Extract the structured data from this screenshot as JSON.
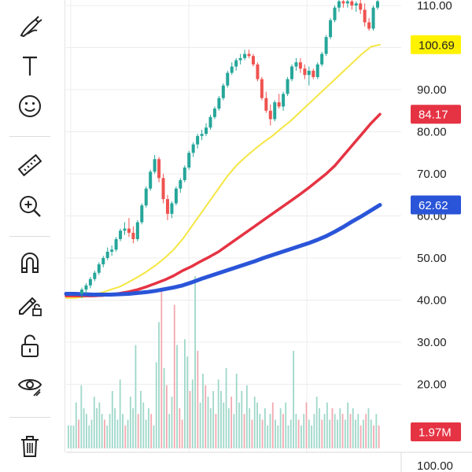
{
  "toolbar": {
    "tools": [
      {
        "name": "brush-tool",
        "icon": "brush-icon"
      },
      {
        "name": "text-tool",
        "icon": "text-icon"
      },
      {
        "name": "emoji-tool",
        "icon": "smiley-icon"
      },
      {
        "name": "measure-tool",
        "icon": "ruler-icon"
      },
      {
        "name": "zoom-in-tool",
        "icon": "zoom-in-icon"
      },
      {
        "name": "magnet-tool",
        "icon": "magnet-icon"
      },
      {
        "name": "lock-drawings-tool",
        "icon": "pencil-lock-icon"
      },
      {
        "name": "lock-tool",
        "icon": "unlock-icon"
      },
      {
        "name": "hide-drawings-tool",
        "icon": "eye-icon"
      },
      {
        "name": "delete-tool",
        "icon": "trash-icon"
      }
    ]
  },
  "chart_data": {
    "type": "candlestick",
    "price_axis": {
      "ticks": [
        "110.00",
        "100.00",
        "90.00",
        "80.00",
        "70.00",
        "60.00",
        "50.00",
        "40.00",
        "30.00",
        "20.00"
      ],
      "bottom_label": "100.00",
      "range": [
        18,
        111.5
      ]
    },
    "grid": true,
    "moving_averages": [
      {
        "color": "#f5e642",
        "last_value": "100.69",
        "tag_bg": "#fff200",
        "tag_fg": "#222222",
        "values": [
          40.5,
          40.5,
          40.8,
          41.3,
          41.8,
          42.5,
          43.2,
          44.3,
          45.5,
          46.8,
          48.3,
          50.0,
          52.0,
          54.5,
          57.5,
          60.5,
          63.5,
          66.5,
          69.5,
          72.0,
          74.0,
          75.8,
          77.5,
          79.0,
          80.8,
          82.5,
          84.5,
          86.5,
          88.5,
          90.5,
          92.5,
          94.5,
          96.5,
          98.5,
          100.2,
          100.69
        ]
      },
      {
        "color": "#e53343",
        "last_value": "84.17",
        "tag_bg": "#e53343",
        "tag_fg": "#ffffff",
        "values": [
          41.0,
          41.0,
          41.0,
          41.0,
          41.1,
          41.3,
          41.6,
          42.0,
          42.5,
          43.2,
          44.0,
          44.8,
          45.8,
          47.0,
          48.0,
          49.2,
          50.3,
          51.5,
          53.0,
          54.5,
          56.0,
          57.5,
          59.0,
          60.5,
          62.0,
          63.5,
          65.0,
          66.6,
          68.3,
          70.0,
          72.0,
          74.5,
          77.0,
          79.5,
          82.0,
          84.17
        ]
      },
      {
        "color": "#2a55d8",
        "last_value": "62.62",
        "tag_bg": "#2a55d8",
        "tag_fg": "#ffffff",
        "values": [
          41.5,
          41.5,
          41.4,
          41.3,
          41.3,
          41.3,
          41.4,
          41.5,
          41.7,
          41.9,
          42.2,
          42.6,
          43.0,
          43.5,
          44.2,
          45.0,
          45.7,
          46.4,
          47.1,
          47.8,
          48.5,
          49.2,
          50.0,
          50.7,
          51.4,
          52.1,
          52.8,
          53.5,
          54.3,
          55.2,
          56.3,
          57.5,
          58.8,
          60.0,
          61.3,
          62.62
        ]
      }
    ],
    "candles": [
      [
        41.5,
        43.0,
        40.5,
        42.5
      ],
      [
        42.5,
        44.0,
        41.5,
        43.5
      ],
      [
        43.5,
        45.5,
        42.8,
        45.0
      ],
      [
        45.0,
        47.0,
        44.5,
        46.5
      ],
      [
        46.5,
        49.0,
        46.0,
        48.5
      ],
      [
        48.5,
        50.5,
        47.8,
        50.0
      ],
      [
        50.0,
        52.5,
        49.5,
        51.5
      ],
      [
        51.5,
        53.0,
        50.5,
        52.0
      ],
      [
        52.0,
        55.0,
        51.5,
        54.5
      ],
      [
        54.5,
        57.0,
        54.0,
        56.5
      ],
      [
        56.5,
        58.5,
        55.5,
        57.0
      ],
      [
        57.0,
        59.5,
        55.0,
        56.0
      ],
      [
        56.0,
        57.5,
        53.5,
        54.5
      ],
      [
        54.5,
        59.0,
        54.0,
        58.5
      ],
      [
        58.5,
        63.0,
        58.0,
        62.5
      ],
      [
        62.5,
        67.0,
        62.0,
        66.5
      ],
      [
        66.5,
        71.0,
        66.0,
        70.5
      ],
      [
        70.5,
        74.5,
        70.0,
        73.5
      ],
      [
        73.5,
        74.0,
        68.0,
        69.0
      ],
      [
        69.0,
        70.0,
        63.0,
        64.0
      ],
      [
        64.0,
        65.0,
        59.0,
        60.5
      ],
      [
        60.5,
        63.5,
        59.5,
        63.0
      ],
      [
        63.0,
        67.0,
        62.5,
        66.5
      ],
      [
        66.5,
        69.0,
        65.5,
        68.5
      ],
      [
        68.5,
        72.0,
        68.0,
        71.5
      ],
      [
        71.5,
        75.5,
        71.0,
        75.0
      ],
      [
        75.0,
        77.5,
        74.0,
        77.0
      ],
      [
        77.0,
        79.5,
        76.0,
        79.0
      ],
      [
        79.0,
        80.5,
        78.0,
        79.5
      ],
      [
        79.5,
        82.0,
        79.0,
        81.0
      ],
      [
        81.0,
        84.0,
        80.5,
        83.5
      ],
      [
        83.5,
        86.0,
        83.0,
        85.5
      ],
      [
        85.5,
        88.5,
        85.0,
        88.0
      ],
      [
        88.0,
        91.5,
        87.5,
        91.0
      ],
      [
        91.0,
        94.5,
        90.5,
        94.0
      ],
      [
        94.0,
        96.5,
        93.5,
        95.5
      ],
      [
        95.5,
        97.5,
        94.5,
        97.0
      ],
      [
        97.0,
        98.5,
        96.0,
        97.5
      ],
      [
        97.5,
        99.5,
        97.0,
        98.5
      ],
      [
        98.5,
        99.5,
        97.5,
        98.0
      ],
      [
        98.0,
        98.5,
        95.5,
        96.0
      ],
      [
        96.0,
        96.5,
        92.0,
        92.5
      ],
      [
        92.5,
        93.0,
        87.5,
        88.0
      ],
      [
        88.0,
        89.5,
        84.5,
        85.0
      ],
      [
        85.0,
        86.5,
        81.5,
        83.0
      ],
      [
        83.0,
        87.5,
        82.5,
        87.0
      ],
      [
        87.0,
        89.0,
        85.5,
        86.0
      ],
      [
        86.0,
        89.5,
        85.0,
        89.0
      ],
      [
        89.0,
        93.0,
        88.5,
        92.5
      ],
      [
        92.5,
        96.0,
        92.0,
        95.5
      ],
      [
        95.5,
        97.5,
        94.5,
        96.5
      ],
      [
        96.5,
        97.5,
        94.0,
        95.0
      ],
      [
        95.0,
        96.0,
        92.5,
        93.5
      ],
      [
        93.5,
        95.5,
        91.0,
        94.5
      ],
      [
        94.5,
        95.0,
        92.5,
        93.0
      ],
      [
        93.0,
        96.5,
        92.5,
        96.0
      ],
      [
        96.0,
        99.0,
        95.5,
        98.5
      ],
      [
        98.5,
        103.0,
        98.0,
        102.5
      ],
      [
        102.5,
        107.0,
        102.0,
        106.5
      ],
      [
        106.5,
        110.0,
        106.0,
        109.5
      ],
      [
        109.5,
        111.5,
        108.5,
        111.0
      ],
      [
        111.0,
        111.5,
        109.5,
        110.5
      ],
      [
        110.5,
        111.5,
        109.5,
        111.0
      ],
      [
        111.0,
        111.5,
        109.0,
        110.0
      ],
      [
        110.0,
        111.0,
        108.5,
        110.5
      ],
      [
        110.5,
        111.5,
        108.0,
        109.0
      ],
      [
        109.0,
        110.5,
        105.0,
        106.0
      ],
      [
        106.0,
        107.0,
        104.0,
        104.5
      ],
      [
        104.5,
        110.0,
        104.0,
        109.5
      ],
      [
        109.5,
        111.5,
        109.0,
        111.0
      ]
    ],
    "volume": {
      "last_value": "1.97M",
      "tag_bg": "#e53343",
      "bars": [
        [
          4,
          1
        ],
        [
          4,
          1
        ],
        [
          4,
          1
        ],
        [
          8,
          1
        ],
        [
          5,
          0
        ],
        [
          11,
          1
        ],
        [
          7,
          1
        ],
        [
          6,
          1
        ],
        [
          4,
          1
        ],
        [
          5,
          1
        ],
        [
          9,
          1
        ],
        [
          7,
          1
        ],
        [
          8,
          1
        ],
        [
          6,
          1
        ],
        [
          5,
          0
        ],
        [
          4,
          1
        ],
        [
          6,
          1
        ],
        [
          10,
          1
        ],
        [
          7,
          1
        ],
        [
          5,
          1
        ],
        [
          12,
          1
        ],
        [
          6,
          1
        ],
        [
          4,
          0
        ],
        [
          5,
          1
        ],
        [
          9,
          1
        ],
        [
          7,
          1
        ],
        [
          18,
          1
        ],
        [
          6,
          0
        ],
        [
          10,
          1
        ],
        [
          8,
          1
        ],
        [
          5,
          1
        ],
        [
          7,
          1
        ],
        [
          6,
          0
        ],
        [
          4,
          1
        ],
        [
          15,
          1
        ],
        [
          22,
          1
        ],
        [
          28,
          0
        ],
        [
          14,
          1
        ],
        [
          11,
          0
        ],
        [
          6,
          1
        ],
        [
          9,
          1
        ],
        [
          25,
          0
        ],
        [
          18,
          1
        ],
        [
          7,
          0
        ],
        [
          5,
          0
        ],
        [
          19,
          1
        ],
        [
          16,
          1
        ],
        [
          10,
          0
        ],
        [
          12,
          1
        ],
        [
          30,
          1
        ],
        [
          17,
          0
        ],
        [
          8,
          1
        ],
        [
          13,
          1
        ],
        [
          11,
          0
        ],
        [
          9,
          1
        ],
        [
          7,
          1
        ],
        [
          10,
          1
        ],
        [
          6,
          0
        ],
        [
          12,
          1
        ],
        [
          10,
          1
        ],
        [
          8,
          1
        ],
        [
          14,
          1
        ],
        [
          7,
          1
        ],
        [
          9,
          0
        ],
        [
          6,
          1
        ],
        [
          13,
          1
        ],
        [
          8,
          1
        ],
        [
          10,
          1
        ],
        [
          6,
          0
        ],
        [
          11,
          1
        ],
        [
          7,
          1
        ],
        [
          5,
          0
        ],
        [
          9,
          1
        ],
        [
          8,
          1
        ],
        [
          6,
          1
        ],
        [
          5,
          0
        ],
        [
          7,
          1
        ],
        [
          4,
          1
        ],
        [
          6,
          1
        ],
        [
          8,
          0
        ],
        [
          5,
          1
        ],
        [
          4,
          1
        ],
        [
          7,
          1
        ],
        [
          6,
          0
        ],
        [
          8,
          1
        ],
        [
          4,
          1
        ],
        [
          5,
          1
        ],
        [
          17,
          1
        ],
        [
          6,
          1
        ],
        [
          5,
          0
        ],
        [
          4,
          1
        ],
        [
          6,
          1
        ],
        [
          8,
          0
        ],
        [
          5,
          1
        ],
        [
          4,
          1
        ],
        [
          6,
          1
        ],
        [
          9,
          1
        ],
        [
          7,
          1
        ],
        [
          5,
          0
        ],
        [
          6,
          1
        ],
        [
          8,
          1
        ],
        [
          5,
          1
        ],
        [
          7,
          0
        ],
        [
          6,
          1
        ],
        [
          5,
          1
        ],
        [
          7,
          1
        ],
        [
          6,
          0
        ],
        [
          5,
          1
        ],
        [
          8,
          1
        ],
        [
          6,
          0
        ],
        [
          7,
          1
        ],
        [
          5,
          1
        ],
        [
          6,
          1
        ],
        [
          4,
          0
        ],
        [
          5,
          1
        ],
        [
          6,
          0
        ],
        [
          7,
          1
        ],
        [
          5,
          1
        ],
        [
          4,
          0
        ],
        [
          6,
          1
        ],
        [
          4,
          0
        ]
      ]
    }
  }
}
